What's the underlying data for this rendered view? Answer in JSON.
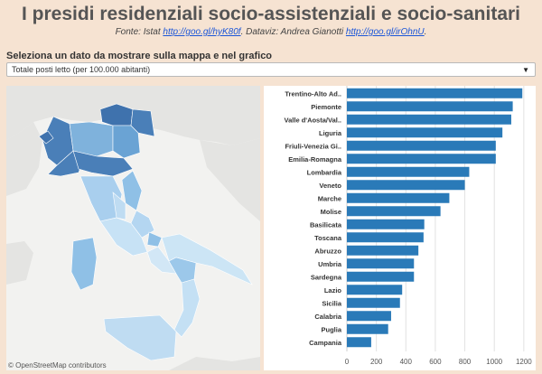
{
  "header": {
    "title": "I presidi residenziali socio-assistenziali e socio-sanitari",
    "source_prefix": "Fonte: Istat ",
    "source_link": "http://goo.gl/hyK80f",
    "dataviz_prefix": ". Dataviz: Andrea Gianotti ",
    "dataviz_link": "http://goo.gl/irOhnU",
    "suffix": "."
  },
  "selector": {
    "label": "Seleziona un dato da mostrare sulla mappa e nel grafico",
    "selected": "Totale posti letto (per 100.000 abitanti)",
    "arrow_icon": "triangle-down-icon"
  },
  "map": {
    "credit": "© OpenStreetMap contributors"
  },
  "colors": {
    "bar": "#2a7ab8",
    "page_background": "#f6e3d2",
    "map_sea": "#f2f2f0",
    "map_land": "#e4e4e2"
  },
  "chart_data": {
    "type": "bar",
    "orientation": "horizontal",
    "categories": [
      "Trentino-Alto Ad..",
      "Piemonte",
      "Valle d'Aosta/Val..",
      "Liguria",
      "Friuli-Venezia Gi..",
      "Emilia-Romagna",
      "Lombardia",
      "Veneto",
      "Marche",
      "Molise",
      "Basilicata",
      "Toscana",
      "Abruzzo",
      "Umbria",
      "Sardegna",
      "Lazio",
      "Sicilia",
      "Calabria",
      "Puglia",
      "Campania"
    ],
    "values": [
      1190,
      1125,
      1115,
      1055,
      1010,
      1010,
      830,
      800,
      695,
      635,
      525,
      520,
      485,
      455,
      455,
      375,
      360,
      300,
      280,
      165
    ],
    "xlim": [
      0,
      1250
    ],
    "xticks": [
      "0",
      "200",
      "400",
      "600",
      "800",
      "1000",
      "1200"
    ],
    "grid": true
  }
}
